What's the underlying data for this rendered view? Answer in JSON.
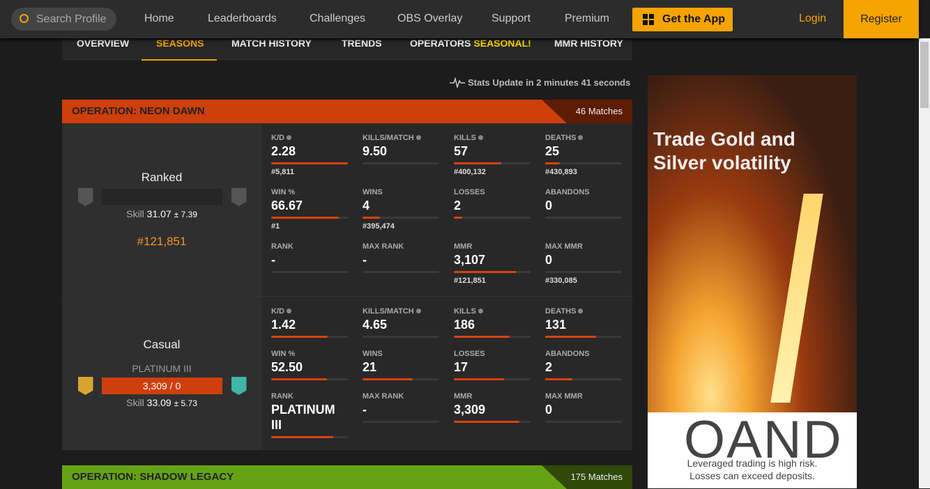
{
  "nav": {
    "search_placeholder": "Search Profile",
    "links": [
      "Home",
      "Leaderboards",
      "Challenges",
      "OBS Overlay",
      "Support",
      "Premium"
    ],
    "get_app": "Get the App",
    "login": "Login",
    "register": "Register"
  },
  "tabs": [
    "OVERVIEW",
    "SEASONS",
    "MATCH HISTORY",
    "TRENDS",
    "OPERATORS",
    "MMR HISTORY"
  ],
  "tab_badge": "SEASONAL!",
  "stats_update": "Stats Update in 2 minutes 41 seconds",
  "seasons": [
    {
      "title": "OPERATION: NEON DAWN",
      "matches": "46 Matches",
      "color": "#cf3f0b",
      "modes": [
        {
          "name": "Ranked",
          "skill_label": "Skill",
          "skill": "31.07",
          "skill_dev": "± 7.39",
          "position": "#121,851",
          "stats": [
            {
              "label": "K/D",
              "info": true,
              "value": "2.28",
              "rank": "#5,811",
              "bar": 100
            },
            {
              "label": "KILLS/MATCH",
              "info": true,
              "value": "9.50",
              "bar": 0
            },
            {
              "label": "KILLS",
              "info": true,
              "value": "57",
              "rank": "#400,132",
              "bar": 62
            },
            {
              "label": "DEATHS",
              "info": true,
              "value": "25",
              "rank": "#430,893",
              "bar": 19
            },
            {
              "label": "WIN %",
              "value": "66.67",
              "rank": "#1",
              "bar": 88
            },
            {
              "label": "WINS",
              "value": "4",
              "rank": "#395,474",
              "bar": 23
            },
            {
              "label": "LOSSES",
              "value": "2",
              "bar": 11
            },
            {
              "label": "ABANDONS",
              "value": "0",
              "bar": 0
            },
            {
              "label": "RANK",
              "value": "-",
              "bar": 0
            },
            {
              "label": "MAX RANK",
              "value": "-",
              "bar": 0
            },
            {
              "label": "MMR",
              "value": "3,107",
              "rank": "#121,851",
              "bar": 82
            },
            {
              "label": "MAX MMR",
              "value": "0",
              "rank": "#330,085",
              "bar": 0
            }
          ]
        },
        {
          "name": "Casual",
          "rank_name": "PLATINUM III",
          "bar_text": "3,309 / 0",
          "skill_label": "Skill",
          "skill": "33.09",
          "skill_dev": "± 5.73",
          "stats": [
            {
              "label": "K/D",
              "info": true,
              "value": "1.42",
              "bar": 74
            },
            {
              "label": "KILLS/MATCH",
              "info": true,
              "value": "4.65",
              "bar": 0
            },
            {
              "label": "KILLS",
              "info": true,
              "value": "186",
              "bar": 73
            },
            {
              "label": "DEATHS",
              "info": true,
              "value": "131",
              "bar": 66
            },
            {
              "label": "WIN %",
              "value": "52.50",
              "bar": 73
            },
            {
              "label": "WINS",
              "value": "21",
              "bar": 65
            },
            {
              "label": "LOSSES",
              "value": "17",
              "bar": 65
            },
            {
              "label": "ABANDONS",
              "value": "2",
              "bar": 35
            },
            {
              "label": "RANK",
              "value": "PLATINUM III",
              "bar": 81
            },
            {
              "label": "MAX RANK",
              "value": "-",
              "bar": 0
            },
            {
              "label": "MMR",
              "value": "3,309",
              "bar": 85
            },
            {
              "label": "MAX MMR",
              "value": "0",
              "bar": 0
            }
          ]
        }
      ]
    },
    {
      "title": "OPERATION: SHADOW LEGACY",
      "matches": "175 Matches",
      "color": "#66a216",
      "modes": []
    }
  ],
  "ad": {
    "headline": "Trade Gold and Silver volatility",
    "brand": "OAND",
    "disclaimer": [
      "Leveraged trading is high risk.",
      "Losses can exceed deposits."
    ]
  }
}
